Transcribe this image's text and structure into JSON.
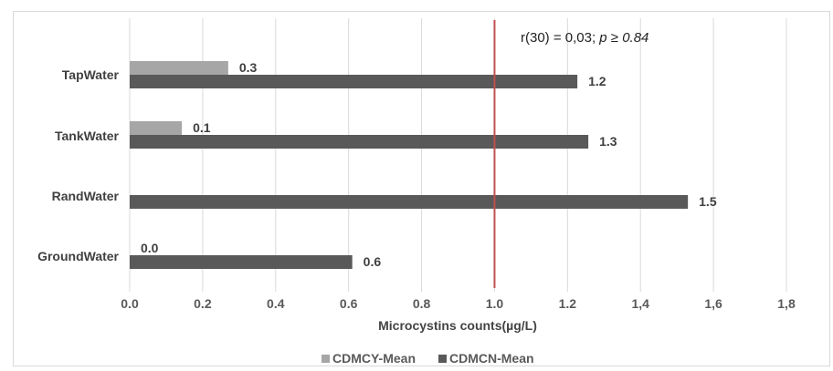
{
  "chart_data": {
    "type": "bar",
    "orientation": "horizontal",
    "categories": [
      "TapWater",
      "TankWater",
      "RandWater",
      "GroundWater"
    ],
    "series": [
      {
        "name": "CDMCY-Mean",
        "color": "#a6a6a6",
        "values": [
          0.27,
          0.143,
          null,
          0.0
        ],
        "labels": [
          "0.3",
          "0.1",
          "",
          "0.0"
        ]
      },
      {
        "name": "CDMCN-Mean",
        "color": "#595959",
        "values": [
          1.227,
          1.257,
          1.53,
          0.61
        ],
        "labels": [
          "1.2",
          "1.3",
          "1.5",
          "0.6"
        ]
      }
    ],
    "xlabel": "Microcystins counts(µg/L)",
    "ylabel": "",
    "xlim": [
      0,
      1.8
    ],
    "xticks": [
      0,
      0.2,
      0.4,
      0.6,
      0.8,
      1.0,
      1.2,
      1.4,
      1.6,
      1.8
    ],
    "xtick_labels": [
      "0.0",
      "0.2",
      "0.4",
      "0.6",
      "0.8",
      "1.0",
      "1.2",
      "1,4",
      "1,6",
      "1,8"
    ],
    "grid": "vertical",
    "legend": "bottom",
    "reference_line": {
      "value": 1.0,
      "color": "#c0504d"
    },
    "annotation": {
      "text": "r(30) = 0,03; ",
      "italic_part": "p ≥ 0.84"
    }
  }
}
